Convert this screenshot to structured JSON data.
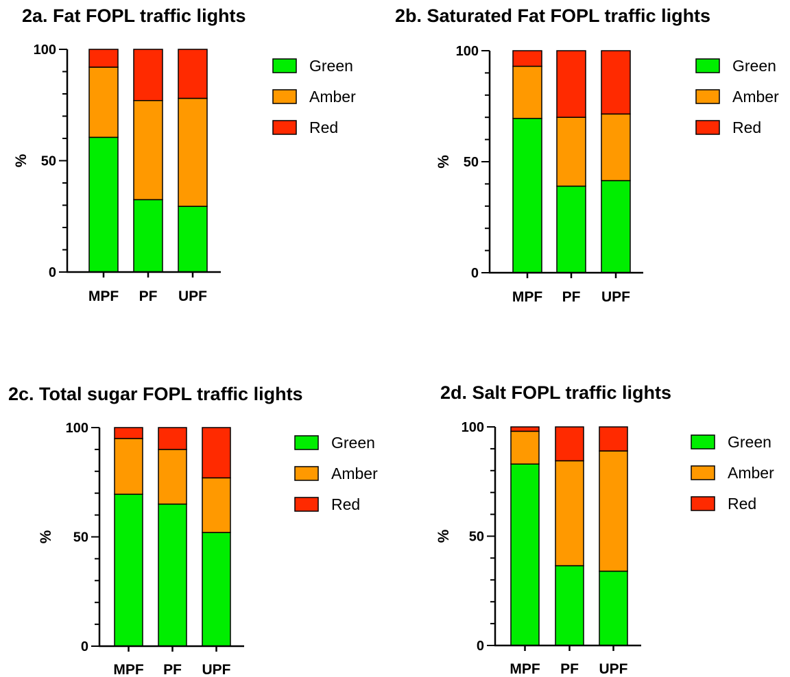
{
  "colors": {
    "Green": "#00ee00",
    "Amber": "#ff9900",
    "Red": "#ff2a00"
  },
  "chart_data": [
    {
      "type": "bar",
      "stacked": true,
      "title": "2a. Fat FOPL traffic lights",
      "ylabel": "%",
      "ylim": [
        0,
        100
      ],
      "yticks": [
        "0",
        "50",
        "100"
      ],
      "categories": [
        "MPF",
        "PF",
        "UPF"
      ],
      "legend_position": "right",
      "series": [
        {
          "name": "Green",
          "values": [
            60.5,
            32.5,
            29.5
          ]
        },
        {
          "name": "Amber",
          "values": [
            31.5,
            44.5,
            48.5
          ]
        },
        {
          "name": "Red",
          "values": [
            8,
            23,
            22
          ]
        }
      ]
    },
    {
      "type": "bar",
      "stacked": true,
      "title": "2b. Saturated Fat FOPL traffic lights",
      "ylabel": "%",
      "ylim": [
        0,
        100
      ],
      "yticks": [
        "0",
        "50",
        "100"
      ],
      "categories": [
        "MPF",
        "PF",
        "UPF"
      ],
      "legend_position": "right",
      "series": [
        {
          "name": "Green",
          "values": [
            69.5,
            39,
            41.5
          ]
        },
        {
          "name": "Amber",
          "values": [
            23.5,
            31,
            30
          ]
        },
        {
          "name": "Red",
          "values": [
            7,
            30,
            28.5
          ]
        }
      ]
    },
    {
      "type": "bar",
      "stacked": true,
      "title": "2c. Total sugar FOPL traffic lights",
      "ylabel": "%",
      "ylim": [
        0,
        100
      ],
      "yticks": [
        "0",
        "50",
        "100"
      ],
      "categories": [
        "MPF",
        "PF",
        "UPF"
      ],
      "legend_position": "right",
      "series": [
        {
          "name": "Green",
          "values": [
            69.5,
            65,
            52
          ]
        },
        {
          "name": "Amber",
          "values": [
            25.5,
            25,
            25
          ]
        },
        {
          "name": "Red",
          "values": [
            5,
            10,
            23
          ]
        }
      ]
    },
    {
      "type": "bar",
      "stacked": true,
      "title": "2d. Salt FOPL traffic lights",
      "ylabel": "%",
      "ylim": [
        0,
        100
      ],
      "yticks": [
        "0",
        "50",
        "100"
      ],
      "categories": [
        "MPF",
        "PF",
        "UPF"
      ],
      "legend_position": "right",
      "series": [
        {
          "name": "Green",
          "values": [
            83,
            36.5,
            34
          ]
        },
        {
          "name": "Amber",
          "values": [
            15,
            48,
            55
          ]
        },
        {
          "name": "Red",
          "values": [
            2,
            15.5,
            11
          ]
        }
      ]
    }
  ]
}
